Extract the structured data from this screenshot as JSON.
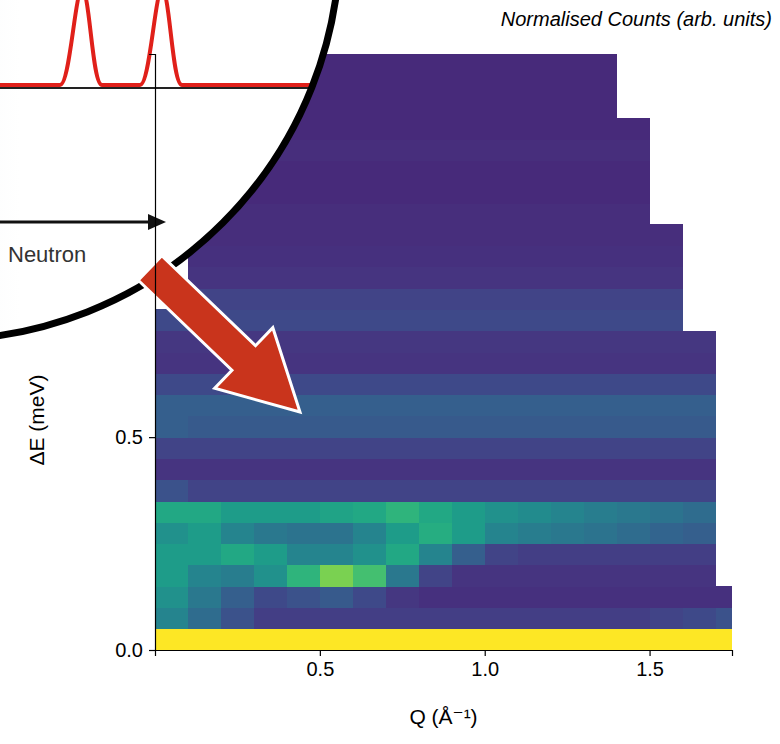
{
  "chart_data": {
    "type": "heatmap",
    "title": "Normalised Counts (arb. units)",
    "x_label": "Q (Å⁻¹)",
    "y_label": "ΔE (meV)",
    "annotations": [
      "Neutron"
    ],
    "xlim": [
      0,
      1.75
    ],
    "ylim": [
      0,
      1.4
    ],
    "xticks": [
      0.5,
      {
        "value": 1,
        "label": "1.0"
      },
      1.5
    ],
    "yticks": [
      {
        "value": 0,
        "label": "0.0"
      },
      0.5
    ],
    "zlim": [
      0,
      1
    ],
    "x_edges": [
      0,
      0.1,
      0.2,
      0.3,
      0.4,
      0.5,
      0.6,
      0.7,
      0.8,
      0.9,
      1,
      1.1,
      1.2,
      1.3,
      1.4,
      1.5,
      1.6,
      1.7,
      1.8
    ],
    "y_edges": [
      0,
      0.05,
      0.1,
      0.15,
      0.2,
      0.25,
      0.3,
      0.35,
      0.4,
      0.45,
      0.5,
      0.55,
      0.6,
      0.65,
      0.7,
      0.75,
      0.8,
      0.85,
      0.9,
      0.95,
      1,
      1.05,
      1.1,
      1.15,
      1.2,
      1.25,
      1.3,
      1.35,
      1.4
    ],
    "z": [
      [
        1,
        1,
        1,
        1,
        1,
        1,
        1,
        1,
        1,
        1,
        1,
        1,
        1,
        1,
        1,
        1,
        1,
        1
      ],
      [
        0.45,
        0.35,
        0.25,
        0.18,
        0.18,
        0.18,
        0.18,
        0.18,
        0.18,
        0.18,
        0.18,
        0.18,
        0.18,
        0.18,
        0.18,
        0.2,
        0.22,
        0.25
      ],
      [
        0.5,
        0.4,
        0.3,
        0.22,
        0.25,
        0.28,
        0.22,
        0.16,
        0.14,
        0.14,
        0.14,
        0.14,
        0.14,
        0.14,
        0.14,
        0.14,
        0.14,
        0.14
      ],
      [
        0.55,
        0.45,
        0.42,
        0.5,
        0.65,
        0.8,
        0.7,
        0.4,
        0.2,
        0.15,
        0.15,
        0.15,
        0.15,
        0.15,
        0.15,
        0.15,
        0.15,
        null
      ],
      [
        0.55,
        0.55,
        0.6,
        0.55,
        0.45,
        0.45,
        0.5,
        0.6,
        0.45,
        0.3,
        0.2,
        0.18,
        0.18,
        0.18,
        0.18,
        0.18,
        0.18,
        null
      ],
      [
        0.5,
        0.55,
        0.45,
        0.4,
        0.38,
        0.38,
        0.45,
        0.55,
        0.62,
        0.55,
        0.45,
        0.42,
        0.4,
        0.38,
        0.35,
        0.32,
        0.3,
        null
      ],
      [
        0.6,
        0.6,
        0.55,
        0.55,
        0.55,
        0.58,
        0.6,
        0.65,
        0.6,
        0.55,
        0.5,
        0.48,
        0.45,
        0.42,
        0.4,
        0.38,
        0.35,
        null
      ],
      [
        0.25,
        0.2,
        0.2,
        0.2,
        0.2,
        0.2,
        0.2,
        0.2,
        0.2,
        0.2,
        0.2,
        0.2,
        0.2,
        0.2,
        0.2,
        0.2,
        0.2,
        null
      ],
      [
        0.15,
        0.15,
        0.15,
        0.15,
        0.15,
        0.15,
        0.15,
        0.15,
        0.15,
        0.15,
        0.15,
        0.15,
        0.15,
        0.15,
        0.15,
        0.15,
        0.15,
        null
      ],
      [
        0.2,
        0.2,
        0.2,
        0.2,
        0.2,
        0.2,
        0.2,
        0.2,
        0.2,
        0.2,
        0.2,
        0.2,
        0.2,
        0.2,
        0.2,
        0.2,
        0.2,
        null
      ],
      [
        0.3,
        0.28,
        0.28,
        0.28,
        0.28,
        0.28,
        0.28,
        0.28,
        0.28,
        0.28,
        0.28,
        0.28,
        0.28,
        0.28,
        0.28,
        0.28,
        0.28,
        null
      ],
      [
        0.3,
        0.3,
        0.3,
        0.3,
        0.3,
        0.3,
        0.3,
        0.3,
        0.3,
        0.3,
        0.3,
        0.3,
        0.3,
        0.3,
        0.3,
        0.3,
        0.3,
        null
      ],
      [
        0.22,
        0.22,
        0.22,
        0.22,
        0.22,
        0.22,
        0.22,
        0.22,
        0.22,
        0.22,
        0.22,
        0.22,
        0.22,
        0.22,
        0.22,
        0.22,
        0.22,
        null
      ],
      [
        0.15,
        0.15,
        0.15,
        0.15,
        0.15,
        0.15,
        0.15,
        0.15,
        0.15,
        0.15,
        0.15,
        0.15,
        0.15,
        0.15,
        0.15,
        0.15,
        0.15,
        null
      ],
      [
        0.16,
        0.16,
        0.16,
        0.16,
        0.16,
        0.16,
        0.16,
        0.16,
        0.16,
        0.16,
        0.16,
        0.16,
        0.16,
        0.16,
        0.16,
        0.16,
        0.16,
        null
      ],
      [
        0.22,
        0.22,
        0.22,
        0.22,
        0.22,
        0.22,
        0.22,
        0.22,
        0.22,
        0.22,
        0.22,
        0.22,
        0.22,
        0.22,
        0.22,
        0.22,
        null,
        null
      ],
      [
        null,
        0.2,
        0.2,
        0.2,
        0.2,
        0.2,
        0.2,
        0.2,
        0.2,
        0.2,
        0.2,
        0.2,
        0.2,
        0.2,
        0.2,
        0.2,
        null,
        null
      ],
      [
        null,
        0.15,
        0.15,
        0.15,
        0.15,
        0.15,
        0.15,
        0.15,
        0.15,
        0.15,
        0.15,
        0.15,
        0.15,
        0.15,
        0.15,
        0.15,
        null,
        null
      ],
      [
        null,
        0.14,
        0.14,
        0.14,
        0.14,
        0.14,
        0.14,
        0.14,
        0.14,
        0.14,
        0.14,
        0.14,
        0.14,
        0.14,
        0.14,
        0.14,
        null,
        null
      ],
      [
        null,
        0.13,
        0.13,
        0.13,
        0.13,
        0.13,
        0.13,
        0.13,
        0.13,
        0.13,
        0.13,
        0.13,
        0.13,
        0.13,
        0.13,
        0.13,
        null,
        null
      ],
      [
        null,
        null,
        0.13,
        0.13,
        0.13,
        0.13,
        0.13,
        0.13,
        0.13,
        0.13,
        0.13,
        0.13,
        0.13,
        0.13,
        0.13,
        null,
        null,
        null
      ],
      [
        null,
        null,
        0.12,
        0.12,
        0.12,
        0.12,
        0.12,
        0.12,
        0.12,
        0.12,
        0.12,
        0.12,
        0.12,
        0.12,
        0.12,
        null,
        null,
        null
      ],
      [
        null,
        null,
        0.12,
        0.12,
        0.12,
        0.12,
        0.12,
        0.12,
        0.12,
        0.12,
        0.12,
        0.12,
        0.12,
        0.12,
        0.12,
        null,
        null,
        null
      ],
      [
        null,
        null,
        0.13,
        0.13,
        0.13,
        0.13,
        0.13,
        0.13,
        0.13,
        0.13,
        0.13,
        0.13,
        0.13,
        0.13,
        0.13,
        null,
        null,
        null
      ],
      [
        null,
        null,
        0.12,
        0.12,
        0.12,
        0.12,
        0.12,
        0.12,
        0.12,
        0.12,
        0.12,
        0.12,
        0.12,
        0.12,
        0.12,
        null,
        null,
        null
      ],
      [
        null,
        null,
        0.12,
        0.12,
        0.12,
        0.12,
        0.12,
        0.12,
        0.12,
        0.12,
        0.12,
        0.12,
        0.12,
        0.12,
        null,
        null,
        null,
        null
      ],
      [
        null,
        null,
        0.12,
        0.12,
        0.12,
        0.12,
        0.12,
        0.12,
        0.12,
        0.12,
        0.12,
        0.12,
        0.12,
        0.12,
        null,
        null,
        null,
        null
      ],
      [
        null,
        null,
        null,
        0.12,
        0.12,
        0.12,
        0.12,
        0.12,
        0.12,
        0.12,
        0.12,
        0.12,
        0.12,
        0.12,
        null,
        null,
        null,
        null
      ]
    ]
  }
}
